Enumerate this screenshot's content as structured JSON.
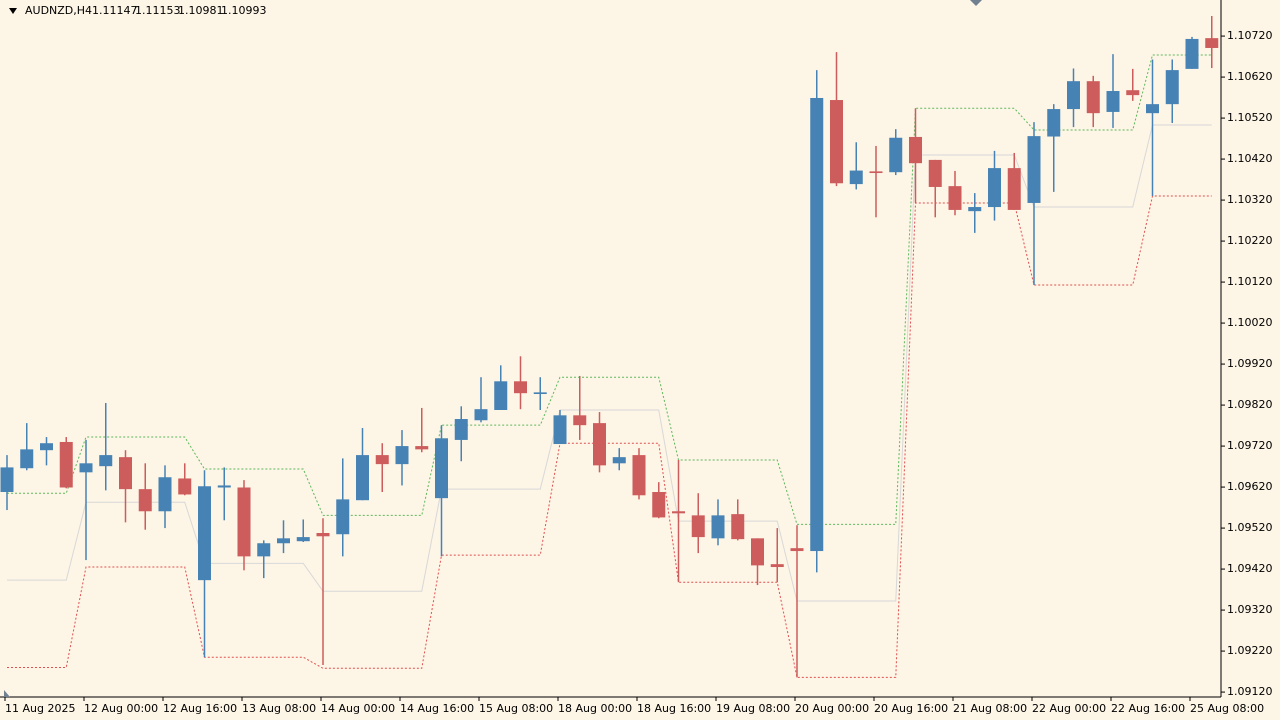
{
  "chart_data": {
    "type": "candlestick",
    "title": "AUDNZD,H4",
    "header_values": [
      1.11147,
      1.11153,
      1.10981,
      1.10993
    ],
    "up_color": "#4682b4",
    "down_color": "#cd5c5c",
    "background": "#fdf5e6",
    "categories": [
      "11 Aug 2025",
      null,
      null,
      null,
      "12 Aug 00:00",
      null,
      null,
      null,
      "12 Aug 16:00",
      null,
      null,
      null,
      "13 Aug 08:00",
      null,
      null,
      null,
      "14 Aug 00:00",
      null,
      null,
      null,
      "14 Aug 16:00",
      null,
      null,
      null,
      "15 Aug 08:00",
      null,
      null,
      null,
      "18 Aug 00:00",
      null,
      null,
      null,
      "18 Aug 16:00",
      null,
      null,
      null,
      "19 Aug 08:00",
      null,
      null,
      null,
      "20 Aug 00:00",
      null,
      null,
      null,
      "20 Aug 16:00",
      null,
      null,
      null,
      "21 Aug 08:00",
      null,
      null,
      null,
      "22 Aug 00:00",
      null,
      null,
      null,
      "22 Aug 16:00",
      null,
      null,
      null,
      "25 Aug 08:00",
      null
    ],
    "open": [
      1.09608,
      1.09666,
      1.0971,
      1.0973,
      1.09656,
      1.09671,
      1.09693,
      1.09615,
      1.09561,
      1.09641,
      1.09393,
      1.09619,
      1.09619,
      1.09451,
      1.09483,
      1.09488,
      1.09508,
      1.09505,
      1.09588,
      1.09698,
      1.09676,
      1.0972,
      1.09593,
      1.09735,
      1.09783,
      1.09808,
      1.09878,
      1.09847,
      1.09725,
      1.09795,
      1.09776,
      1.09678,
      1.09698,
      1.09608,
      1.09561,
      1.09551,
      1.09495,
      1.09554,
      1.09495,
      1.09432,
      1.09471,
      1.09464,
      1.10564,
      1.10359,
      1.1039,
      1.10388,
      1.10474,
      1.10418,
      1.10354,
      1.10293,
      1.10303,
      1.10398,
      1.10313,
      1.10475,
      1.10542,
      1.1061,
      1.10535,
      1.10588,
      1.10532,
      1.10554,
      1.1064,
      1.10715
    ],
    "high": [
      1.09698,
      1.09776,
      1.09742,
      1.09742,
      1.09735,
      1.09825,
      1.0971,
      1.09678,
      1.09673,
      1.09678,
      1.09661,
      1.09668,
      1.09637,
      1.0949,
      1.09539,
      1.09541,
      1.09544,
      1.0969,
      1.09764,
      1.09727,
      1.09759,
      1.09813,
      1.09771,
      1.09817,
      1.09888,
      1.09917,
      1.09939,
      1.09888,
      1.09808,
      1.09891,
      1.09803,
      1.09715,
      1.09715,
      1.09632,
      1.09686,
      1.09605,
      1.0959,
      1.0959,
      1.09495,
      1.0952,
      1.09527,
      1.10637,
      1.10681,
      1.10461,
      1.10452,
      1.10493,
      1.10544,
      1.10418,
      1.10391,
      1.10337,
      1.1044,
      1.10435,
      1.1051,
      1.10554,
      1.10641,
      1.10623,
      1.10676,
      1.1064,
      1.10663,
      1.10663,
      1.10718,
      1.10769
    ],
    "low": [
      1.09564,
      1.09661,
      1.09673,
      1.09617,
      1.09442,
      1.09612,
      1.09534,
      1.09516,
      1.0952,
      1.096,
      1.09205,
      1.09539,
      1.09417,
      1.09398,
      1.09459,
      1.09486,
      1.09186,
      1.09451,
      1.09588,
      1.09608,
      1.09624,
      1.09705,
      1.09451,
      1.09683,
      1.09778,
      1.09808,
      1.0981,
      1.09808,
      1.09725,
      1.09735,
      1.09656,
      1.09661,
      1.0959,
      1.09544,
      1.09388,
      1.09459,
      1.09478,
      1.0949,
      1.09381,
      1.09388,
      1.09156,
      1.09412,
      1.10354,
      1.10346,
      1.10278,
      1.10381,
      1.10313,
      1.10278,
      1.10283,
      1.1024,
      1.1027,
      1.10296,
      1.10113,
      1.1034,
      1.10498,
      1.10498,
      1.10496,
      1.10562,
      1.1033,
      1.10508,
      1.1064,
      1.10642
    ],
    "close": [
      1.09668,
      1.09712,
      1.09727,
      1.09619,
      1.09678,
      1.09698,
      1.09615,
      1.09561,
      1.09644,
      1.09602,
      1.09622,
      1.09624,
      1.09451,
      1.09483,
      1.09495,
      1.09498,
      1.095,
      1.0959,
      1.09698,
      1.09676,
      1.0972,
      1.09712,
      1.09739,
      1.09786,
      1.0981,
      1.09878,
      1.09849,
      1.09851,
      1.09795,
      1.09771,
      1.09673,
      1.09693,
      1.096,
      1.09546,
      1.09556,
      1.09498,
      1.09551,
      1.09493,
      1.09429,
      1.09425,
      1.09464,
      1.10569,
      1.10361,
      1.10392,
      1.10386,
      1.10472,
      1.1041,
      1.10352,
      1.10296,
      1.10303,
      1.10398,
      1.10296,
      1.10476,
      1.10542,
      1.1061,
      1.10532,
      1.10586,
      1.10576,
      1.10554,
      1.10637,
      1.10713,
      1.10691
    ],
    "series": [
      {
        "color": "#5cb85c",
        "style": "dotted",
        "values": [
          1.09605,
          1.09605,
          1.09605,
          1.09605,
          1.09742,
          1.09742,
          1.09742,
          1.09742,
          1.09742,
          1.09742,
          1.09664,
          1.09664,
          1.09664,
          1.09664,
          1.09664,
          1.09664,
          1.09551,
          1.09551,
          1.09551,
          1.09551,
          1.09551,
          1.09551,
          1.09771,
          1.09771,
          1.09771,
          1.09771,
          1.09771,
          1.09771,
          1.09888,
          1.09888,
          1.09888,
          1.09888,
          1.09888,
          1.09888,
          1.09686,
          1.09686,
          1.09686,
          1.09686,
          1.09686,
          1.09686,
          1.09529,
          1.09529,
          1.09529,
          1.09529,
          1.09529,
          1.09529,
          1.10544,
          1.10544,
          1.10544,
          1.10544,
          1.10544,
          1.10544,
          1.10491,
          1.10491,
          1.10491,
          1.10491,
          1.10491,
          1.10491,
          1.10674,
          1.10674,
          1.10674,
          1.10674
        ]
      },
      {
        "color": "#e05050",
        "style": "dotted",
        "values": [
          1.0918,
          1.0918,
          1.0918,
          1.0918,
          1.09425,
          1.09425,
          1.09425,
          1.09425,
          1.09425,
          1.09425,
          1.09205,
          1.09205,
          1.09205,
          1.09205,
          1.09205,
          1.09205,
          1.09178,
          1.09178,
          1.09178,
          1.09178,
          1.09178,
          1.09178,
          1.09454,
          1.09454,
          1.09454,
          1.09454,
          1.09454,
          1.09454,
          1.09727,
          1.09727,
          1.09727,
          1.09727,
          1.09727,
          1.09727,
          1.09388,
          1.09388,
          1.09388,
          1.09388,
          1.09388,
          1.09388,
          1.09156,
          1.09156,
          1.09156,
          1.09156,
          1.09156,
          1.09156,
          1.10313,
          1.10313,
          1.10313,
          1.10313,
          1.10313,
          1.10313,
          1.10113,
          1.10113,
          1.10113,
          1.10113,
          1.10113,
          1.10113,
          1.1033,
          1.1033,
          1.1033,
          1.1033
        ]
      },
      {
        "color": "#d8d8d8",
        "style": "solid",
        "values": [
          1.09393,
          1.09393,
          1.09393,
          1.09393,
          1.09583,
          1.09583,
          1.09583,
          1.09583,
          1.09583,
          1.09583,
          1.09434,
          1.09434,
          1.09434,
          1.09434,
          1.09434,
          1.09434,
          1.09366,
          1.09366,
          1.09366,
          1.09366,
          1.09366,
          1.09366,
          1.09615,
          1.09615,
          1.09615,
          1.09615,
          1.09615,
          1.09615,
          1.09808,
          1.09808,
          1.09808,
          1.09808,
          1.09808,
          1.09808,
          1.09537,
          1.09537,
          1.09537,
          1.09537,
          1.09537,
          1.09537,
          1.09342,
          1.09342,
          1.09342,
          1.09342,
          1.09342,
          1.09342,
          1.1043,
          1.1043,
          1.1043,
          1.1043,
          1.1043,
          1.1043,
          1.10303,
          1.10303,
          1.10303,
          1.10303,
          1.10303,
          1.10303,
          1.10503,
          1.10503,
          1.10503,
          1.10503
        ]
      }
    ],
    "ylim": [
      1.09108,
      1.10808
    ],
    "yticks": [
      {
        "value": 1.1072,
        "label": "1.10720"
      },
      {
        "value": 1.1062,
        "label": "1.10620"
      },
      {
        "value": 1.1052,
        "label": "1.10520"
      },
      {
        "value": 1.1042,
        "label": "1.10420"
      },
      {
        "value": 1.1032,
        "label": "1.10320"
      },
      {
        "value": 1.1022,
        "label": "1.10220"
      },
      {
        "value": 1.1012,
        "label": "1.10120"
      },
      {
        "value": 1.1002,
        "label": "1.10020"
      },
      {
        "value": 1.0992,
        "label": "1.09920"
      },
      {
        "value": 1.0982,
        "label": "1.09820"
      },
      {
        "value": 1.0972,
        "label": "1.09720"
      },
      {
        "value": 1.0962,
        "label": "1.09620"
      },
      {
        "value": 1.0952,
        "label": "1.09520"
      },
      {
        "value": 1.0942,
        "label": "1.09420"
      },
      {
        "value": 1.0932,
        "label": "1.09320"
      },
      {
        "value": 1.0922,
        "label": "1.09220"
      },
      {
        "value": 1.0912,
        "label": "1.09120"
      }
    ]
  }
}
